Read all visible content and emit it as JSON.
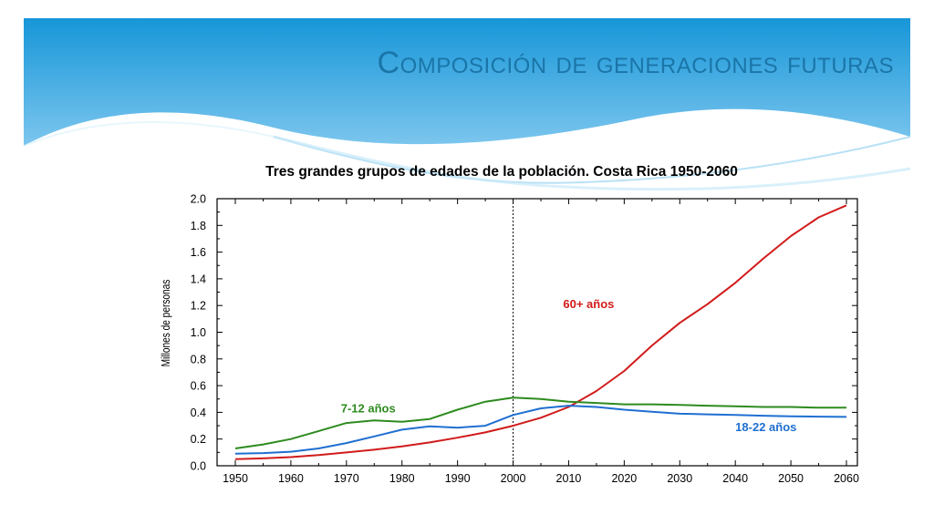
{
  "slide": {
    "title": "Composición de generaciones futuras"
  },
  "colors": {
    "banner_top": "#1796d8",
    "banner_bottom": "#7cc6ee",
    "title": "#1a75a8",
    "series_60": "#d11b1b",
    "series_7_12": "#2e8b1f",
    "series_18_22": "#1f6fd1"
  },
  "chart_data": {
    "type": "line",
    "title": "Tres grandes grupos de edades de la población. Costa Rica 1950-2060",
    "xlabel": "",
    "ylabel": "Millones de personas",
    "xlim": [
      1950,
      2060
    ],
    "ylim": [
      0.0,
      2.0
    ],
    "x_ticks": [
      1950,
      1960,
      1970,
      1980,
      1990,
      2000,
      2010,
      2020,
      2030,
      2040,
      2050,
      2060
    ],
    "y_ticks": [
      "0.0",
      "0.2",
      "0.4",
      "0.6",
      "0.8",
      "1.0",
      "1.2",
      "1.4",
      "1.6",
      "1.8",
      "2.0"
    ],
    "reference_line_x": 2000,
    "x": [
      1950,
      1955,
      1960,
      1965,
      1970,
      1975,
      1980,
      1985,
      1990,
      1995,
      2000,
      2005,
      2010,
      2015,
      2020,
      2025,
      2030,
      2035,
      2040,
      2045,
      2050,
      2055,
      2060
    ],
    "series": [
      {
        "name": "60+ años",
        "color": "#d11b1b",
        "values": [
          0.05,
          0.055,
          0.065,
          0.08,
          0.1,
          0.12,
          0.145,
          0.175,
          0.21,
          0.25,
          0.3,
          0.36,
          0.44,
          0.56,
          0.71,
          0.9,
          1.07,
          1.21,
          1.37,
          1.55,
          1.72,
          1.86,
          1.95
        ]
      },
      {
        "name": "7-12 años",
        "color": "#2e8b1f",
        "values": [
          0.13,
          0.16,
          0.2,
          0.26,
          0.32,
          0.34,
          0.33,
          0.35,
          0.42,
          0.48,
          0.51,
          0.5,
          0.48,
          0.47,
          0.46,
          0.46,
          0.455,
          0.45,
          0.445,
          0.44,
          0.44,
          0.435,
          0.435
        ]
      },
      {
        "name": "18-22 años",
        "color": "#1f6fd1",
        "values": [
          0.09,
          0.095,
          0.105,
          0.13,
          0.17,
          0.22,
          0.27,
          0.295,
          0.285,
          0.3,
          0.38,
          0.43,
          0.45,
          0.44,
          0.42,
          0.405,
          0.39,
          0.385,
          0.38,
          0.375,
          0.37,
          0.368,
          0.366
        ]
      }
    ],
    "series_labels": [
      {
        "text": "60+ años",
        "x": 2009,
        "y": 1.18,
        "color": "#d11b1b"
      },
      {
        "text": "7-12 años",
        "x": 1969,
        "y": 0.4,
        "color": "#2e8b1f"
      },
      {
        "text": "18-22 años",
        "x": 2040,
        "y": 0.26,
        "color": "#1f6fd1"
      }
    ]
  }
}
